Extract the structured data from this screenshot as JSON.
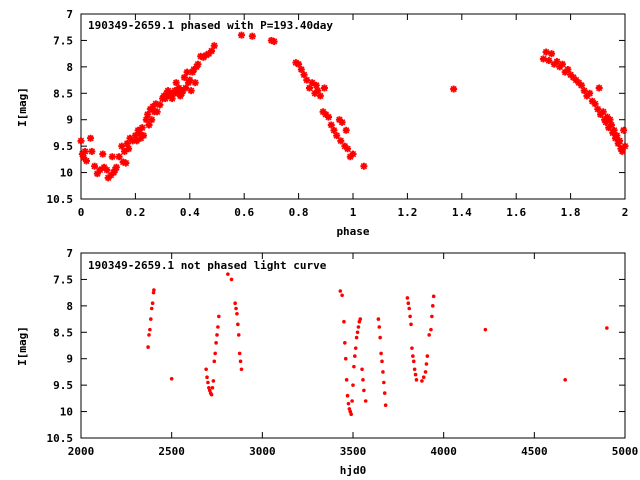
{
  "chart_data": [
    {
      "type": "scatter",
      "title": "190349-2659.1 phased with P=193.40day",
      "xlabel": "phase",
      "ylabel": "I[mag]",
      "xlim": [
        0,
        2
      ],
      "ylim": [
        10.5,
        7
      ],
      "y_inverted": true,
      "xticks": [
        "0",
        "0.2",
        "0.4",
        "0.6",
        "0.8",
        "1",
        "1.2",
        "1.4",
        "1.6",
        "1.8",
        "2"
      ],
      "yticks": [
        "7",
        "7.5",
        "8",
        "8.5",
        "9",
        "9.5",
        "10",
        "10.5"
      ],
      "marker_color": "#ff0000",
      "marker": "star",
      "points": [
        [
          0.0,
          9.4
        ],
        [
          0.005,
          9.65
        ],
        [
          0.01,
          9.72
        ],
        [
          0.015,
          9.6
        ],
        [
          0.02,
          9.78
        ],
        [
          0.035,
          9.35
        ],
        [
          0.04,
          9.6
        ],
        [
          0.05,
          9.88
        ],
        [
          0.06,
          10.02
        ],
        [
          0.07,
          9.95
        ],
        [
          0.08,
          9.65
        ],
        [
          0.085,
          9.9
        ],
        [
          0.095,
          9.95
        ],
        [
          0.1,
          10.1
        ],
        [
          0.11,
          10.05
        ],
        [
          0.115,
          9.7
        ],
        [
          0.12,
          10.0
        ],
        [
          0.125,
          9.95
        ],
        [
          0.13,
          9.9
        ],
        [
          0.14,
          9.7
        ],
        [
          0.15,
          9.5
        ],
        [
          0.155,
          9.8
        ],
        [
          0.16,
          9.6
        ],
        [
          0.165,
          9.82
        ],
        [
          0.17,
          9.45
        ],
        [
          0.175,
          9.55
        ],
        [
          0.18,
          9.35
        ],
        [
          0.19,
          9.4
        ],
        [
          0.2,
          9.3
        ],
        [
          0.205,
          9.4
        ],
        [
          0.21,
          9.2
        ],
        [
          0.215,
          9.25
        ],
        [
          0.22,
          9.35
        ],
        [
          0.225,
          9.15
        ],
        [
          0.23,
          9.3
        ],
        [
          0.24,
          9.0
        ],
        [
          0.245,
          8.9
        ],
        [
          0.25,
          9.1
        ],
        [
          0.255,
          8.8
        ],
        [
          0.26,
          9.0
        ],
        [
          0.265,
          8.75
        ],
        [
          0.27,
          8.85
        ],
        [
          0.275,
          8.7
        ],
        [
          0.28,
          8.85
        ],
        [
          0.29,
          8.72
        ],
        [
          0.3,
          8.6
        ],
        [
          0.305,
          8.55
        ],
        [
          0.31,
          8.6
        ],
        [
          0.315,
          8.5
        ],
        [
          0.32,
          8.45
        ],
        [
          0.325,
          8.55
        ],
        [
          0.33,
          8.5
        ],
        [
          0.335,
          8.6
        ],
        [
          0.34,
          8.5
        ],
        [
          0.345,
          8.45
        ],
        [
          0.35,
          8.3
        ],
        [
          0.355,
          8.5
        ],
        [
          0.36,
          8.4
        ],
        [
          0.365,
          8.55
        ],
        [
          0.37,
          8.5
        ],
        [
          0.375,
          8.45
        ],
        [
          0.38,
          8.2
        ],
        [
          0.385,
          8.4
        ],
        [
          0.39,
          8.1
        ],
        [
          0.395,
          8.3
        ],
        [
          0.4,
          8.25
        ],
        [
          0.405,
          8.45
        ],
        [
          0.41,
          8.1
        ],
        [
          0.415,
          8.05
        ],
        [
          0.42,
          8.3
        ],
        [
          0.425,
          8.0
        ],
        [
          0.43,
          7.95
        ],
        [
          0.44,
          7.8
        ],
        [
          0.45,
          7.82
        ],
        [
          0.46,
          7.78
        ],
        [
          0.47,
          7.75
        ],
        [
          0.48,
          7.7
        ],
        [
          0.49,
          7.6
        ],
        [
          0.59,
          7.4
        ],
        [
          0.63,
          7.42
        ],
        [
          0.7,
          7.5
        ],
        [
          0.71,
          7.52
        ],
        [
          0.79,
          7.92
        ],
        [
          0.8,
          7.95
        ],
        [
          0.81,
          8.05
        ],
        [
          0.82,
          8.15
        ],
        [
          0.83,
          8.25
        ],
        [
          0.84,
          8.4
        ],
        [
          0.85,
          8.3
        ],
        [
          0.86,
          8.5
        ],
        [
          0.865,
          8.35
        ],
        [
          0.87,
          8.45
        ],
        [
          0.88,
          8.55
        ],
        [
          0.89,
          8.85
        ],
        [
          0.895,
          8.4
        ],
        [
          0.9,
          8.9
        ],
        [
          0.91,
          8.95
        ],
        [
          0.92,
          9.1
        ],
        [
          0.93,
          9.2
        ],
        [
          0.94,
          9.3
        ],
        [
          0.95,
          9.0
        ],
        [
          0.955,
          9.4
        ],
        [
          0.96,
          9.05
        ],
        [
          0.97,
          9.5
        ],
        [
          0.975,
          9.2
        ],
        [
          0.98,
          9.55
        ],
        [
          0.99,
          9.7
        ],
        [
          1.0,
          9.65
        ],
        [
          1.04,
          9.88
        ],
        [
          1.37,
          8.42
        ],
        [
          1.7,
          7.85
        ],
        [
          1.71,
          7.72
        ],
        [
          1.72,
          7.88
        ],
        [
          1.73,
          7.75
        ],
        [
          1.74,
          7.95
        ],
        [
          1.75,
          7.9
        ],
        [
          1.76,
          8.0
        ],
        [
          1.77,
          7.95
        ],
        [
          1.78,
          8.1
        ],
        [
          1.79,
          8.05
        ],
        [
          1.8,
          8.15
        ],
        [
          1.81,
          8.2
        ],
        [
          1.82,
          8.25
        ],
        [
          1.83,
          8.3
        ],
        [
          1.84,
          8.35
        ],
        [
          1.85,
          8.45
        ],
        [
          1.86,
          8.55
        ],
        [
          1.87,
          8.5
        ],
        [
          1.88,
          8.65
        ],
        [
          1.89,
          8.7
        ],
        [
          1.9,
          8.8
        ],
        [
          1.905,
          8.4
        ],
        [
          1.91,
          8.9
        ],
        [
          1.92,
          8.85
        ],
        [
          1.925,
          9.0
        ],
        [
          1.93,
          9.05
        ],
        [
          1.935,
          8.95
        ],
        [
          1.94,
          9.15
        ],
        [
          1.945,
          9.0
        ],
        [
          1.95,
          9.1
        ],
        [
          1.955,
          9.25
        ],
        [
          1.96,
          9.2
        ],
        [
          1.965,
          9.35
        ],
        [
          1.97,
          9.3
        ],
        [
          1.975,
          9.45
        ],
        [
          1.98,
          9.4
        ],
        [
          1.985,
          9.55
        ],
        [
          1.99,
          9.6
        ],
        [
          1.995,
          9.2
        ],
        [
          2.0,
          9.5
        ]
      ]
    },
    {
      "type": "scatter",
      "title": "190349-2659.1 not phased light curve",
      "xlabel": "hjd0",
      "ylabel": "I[mag]",
      "xlim": [
        2000,
        5000
      ],
      "ylim": [
        10.5,
        7
      ],
      "y_inverted": true,
      "xticks": [
        "2000",
        "2500",
        "3000",
        "3500",
        "4000",
        "4500",
        "5000"
      ],
      "yticks": [
        "7",
        "7.5",
        "8",
        "8.5",
        "9",
        "9.5",
        "10",
        "10.5"
      ],
      "marker_color": "#ff0000",
      "marker": "dot",
      "points": [
        [
          2370,
          8.78
        ],
        [
          2375,
          8.55
        ],
        [
          2380,
          8.45
        ],
        [
          2385,
          8.25
        ],
        [
          2390,
          8.05
        ],
        [
          2395,
          7.95
        ],
        [
          2400,
          7.75
        ],
        [
          2402,
          7.7
        ],
        [
          2500,
          9.38
        ],
        [
          2690,
          9.2
        ],
        [
          2695,
          9.35
        ],
        [
          2700,
          9.45
        ],
        [
          2705,
          9.55
        ],
        [
          2710,
          9.6
        ],
        [
          2715,
          9.65
        ],
        [
          2720,
          9.68
        ],
        [
          2725,
          9.55
        ],
        [
          2730,
          9.42
        ],
        [
          2735,
          9.05
        ],
        [
          2740,
          8.9
        ],
        [
          2745,
          8.7
        ],
        [
          2750,
          8.55
        ],
        [
          2755,
          8.4
        ],
        [
          2760,
          8.2
        ],
        [
          2810,
          7.4
        ],
        [
          2830,
          7.5
        ],
        [
          2850,
          7.95
        ],
        [
          2855,
          8.05
        ],
        [
          2860,
          8.15
        ],
        [
          2865,
          8.35
        ],
        [
          2870,
          8.55
        ],
        [
          2875,
          8.9
        ],
        [
          2880,
          9.05
        ],
        [
          2885,
          9.2
        ],
        [
          3430,
          7.72
        ],
        [
          3440,
          7.8
        ],
        [
          3450,
          8.3
        ],
        [
          3455,
          8.7
        ],
        [
          3460,
          9.0
        ],
        [
          3465,
          9.4
        ],
        [
          3470,
          9.7
        ],
        [
          3475,
          9.85
        ],
        [
          3480,
          9.95
        ],
        [
          3485,
          10.0
        ],
        [
          3490,
          10.05
        ],
        [
          3495,
          9.8
        ],
        [
          3500,
          9.5
        ],
        [
          3505,
          9.15
        ],
        [
          3510,
          8.95
        ],
        [
          3515,
          8.8
        ],
        [
          3520,
          8.6
        ],
        [
          3525,
          8.5
        ],
        [
          3530,
          8.4
        ],
        [
          3535,
          8.3
        ],
        [
          3540,
          8.25
        ],
        [
          3550,
          9.2
        ],
        [
          3555,
          9.4
        ],
        [
          3560,
          9.6
        ],
        [
          3570,
          9.8
        ],
        [
          3640,
          8.25
        ],
        [
          3645,
          8.4
        ],
        [
          3650,
          8.6
        ],
        [
          3655,
          8.9
        ],
        [
          3660,
          9.05
        ],
        [
          3665,
          9.25
        ],
        [
          3670,
          9.45
        ],
        [
          3675,
          9.65
        ],
        [
          3680,
          9.88
        ],
        [
          3800,
          7.85
        ],
        [
          3805,
          7.95
        ],
        [
          3810,
          8.05
        ],
        [
          3815,
          8.2
        ],
        [
          3820,
          8.35
        ],
        [
          3825,
          8.8
        ],
        [
          3830,
          8.95
        ],
        [
          3835,
          9.05
        ],
        [
          3840,
          9.2
        ],
        [
          3845,
          9.3
        ],
        [
          3850,
          9.4
        ],
        [
          3880,
          9.42
        ],
        [
          3890,
          9.35
        ],
        [
          3900,
          9.25
        ],
        [
          3905,
          9.1
        ],
        [
          3910,
          8.95
        ],
        [
          3920,
          8.55
        ],
        [
          3930,
          8.45
        ],
        [
          3935,
          8.2
        ],
        [
          3940,
          8.0
        ],
        [
          3945,
          7.82
        ],
        [
          4230,
          8.45
        ],
        [
          4670,
          9.4
        ],
        [
          4900,
          8.42
        ]
      ]
    }
  ]
}
